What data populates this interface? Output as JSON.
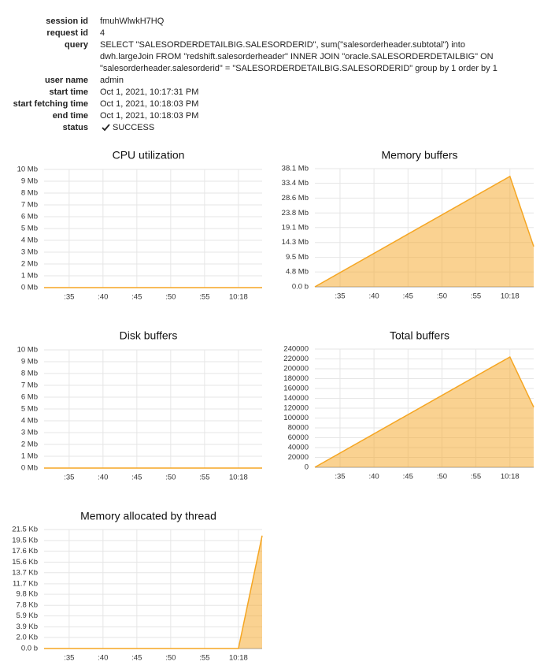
{
  "details": [
    {
      "label": "session id",
      "value": [
        "fmuhWlwkH7HQ"
      ]
    },
    {
      "label": "request id",
      "value": [
        "4"
      ]
    },
    {
      "label": "query",
      "value": [
        "SELECT \"SALESORDERDETAILBIG.SALESORDERID\", sum(\"salesorderheader.subtotal\") into",
        "dwh.largeJoin FROM \"redshift.salesorderheader\" INNER JOIN \"oracle.SALESORDERDETAILBIG\" ON",
        "\"salesorderheader.salesorderid\" = \"SALESORDERDETAILBIG.SALESORDERID\" group by 1 order by 1"
      ]
    },
    {
      "label": "user name",
      "value": [
        "admin"
      ]
    },
    {
      "label": "start time",
      "value": [
        "Oct 1, 2021, 10:17:31 PM"
      ]
    },
    {
      "label": "start fetching time",
      "value": [
        "Oct 1, 2021, 10:18:03 PM"
      ]
    },
    {
      "label": "end time",
      "value": [
        "Oct 1, 2021, 10:18:03 PM"
      ]
    },
    {
      "label": "status",
      "value": [
        "SUCCESS"
      ]
    }
  ],
  "chart_data": [
    {
      "type": "area",
      "title": "CPU utilization",
      "color": "#f5a623",
      "grid": true,
      "x": [
        31.3,
        60,
        63.5
      ],
      "values": [
        0,
        0,
        0
      ],
      "xlim": [
        31.3,
        63.5
      ],
      "xticks": [
        {
          "value": 35,
          "label": ":35"
        },
        {
          "value": 40,
          "label": ":40"
        },
        {
          "value": 45,
          "label": ":45"
        },
        {
          "value": 50,
          "label": ":50"
        },
        {
          "value": 55,
          "label": ":55"
        },
        {
          "value": 60,
          "label": "10:18"
        }
      ],
      "ylim": [
        0,
        10
      ],
      "yticks": [
        {
          "value": 0,
          "label": "0 Mb"
        },
        {
          "value": 1,
          "label": "1 Mb"
        },
        {
          "value": 2,
          "label": "2 Mb"
        },
        {
          "value": 3,
          "label": "3 Mb"
        },
        {
          "value": 4,
          "label": "4 Mb"
        },
        {
          "value": 5,
          "label": "5 Mb"
        },
        {
          "value": 6,
          "label": "6 Mb"
        },
        {
          "value": 7,
          "label": "7 Mb"
        },
        {
          "value": 8,
          "label": "8 Mb"
        },
        {
          "value": 9,
          "label": "9 Mb"
        },
        {
          "value": 10,
          "label": "10 Mb"
        }
      ]
    },
    {
      "type": "area",
      "title": "Memory buffers",
      "color": "#f5a623",
      "grid": true,
      "x": [
        31.3,
        60,
        63.5
      ],
      "values": [
        0,
        35.6,
        13.0
      ],
      "xlim": [
        31.3,
        63.5
      ],
      "xticks": [
        {
          "value": 35,
          "label": ":35"
        },
        {
          "value": 40,
          "label": ":40"
        },
        {
          "value": 45,
          "label": ":45"
        },
        {
          "value": 50,
          "label": ":50"
        },
        {
          "value": 55,
          "label": ":55"
        },
        {
          "value": 60,
          "label": "10:18"
        }
      ],
      "ylim": [
        0,
        38.1
      ],
      "yticks": [
        {
          "value": 0,
          "label": "0.0 b"
        },
        {
          "value": 4.8,
          "label": "4.8 Mb"
        },
        {
          "value": 9.5,
          "label": "9.5 Mb"
        },
        {
          "value": 14.3,
          "label": "14.3 Mb"
        },
        {
          "value": 19.1,
          "label": "19.1 Mb"
        },
        {
          "value": 23.8,
          "label": "23.8 Mb"
        },
        {
          "value": 28.6,
          "label": "28.6 Mb"
        },
        {
          "value": 33.4,
          "label": "33.4 Mb"
        },
        {
          "value": 38.1,
          "label": "38.1 Mb"
        }
      ]
    },
    {
      "type": "area",
      "title": "Disk buffers",
      "color": "#f5a623",
      "grid": true,
      "x": [
        31.3,
        60,
        63.5
      ],
      "values": [
        0,
        0,
        0
      ],
      "xlim": [
        31.3,
        63.5
      ],
      "xticks": [
        {
          "value": 35,
          "label": ":35"
        },
        {
          "value": 40,
          "label": ":40"
        },
        {
          "value": 45,
          "label": ":45"
        },
        {
          "value": 50,
          "label": ":50"
        },
        {
          "value": 55,
          "label": ":55"
        },
        {
          "value": 60,
          "label": "10:18"
        }
      ],
      "ylim": [
        0,
        10
      ],
      "yticks": [
        {
          "value": 0,
          "label": "0 Mb"
        },
        {
          "value": 1,
          "label": "1 Mb"
        },
        {
          "value": 2,
          "label": "2 Mb"
        },
        {
          "value": 3,
          "label": "3 Mb"
        },
        {
          "value": 4,
          "label": "4 Mb"
        },
        {
          "value": 5,
          "label": "5 Mb"
        },
        {
          "value": 6,
          "label": "6 Mb"
        },
        {
          "value": 7,
          "label": "7 Mb"
        },
        {
          "value": 8,
          "label": "8 Mb"
        },
        {
          "value": 9,
          "label": "9 Mb"
        },
        {
          "value": 10,
          "label": "10 Mb"
        }
      ]
    },
    {
      "type": "area",
      "title": "Total buffers",
      "color": "#f5a623",
      "grid": true,
      "x": [
        31.3,
        60,
        63.5
      ],
      "values": [
        0,
        224000,
        122000
      ],
      "xlim": [
        31.3,
        63.5
      ],
      "xticks": [
        {
          "value": 35,
          "label": ":35"
        },
        {
          "value": 40,
          "label": ":40"
        },
        {
          "value": 45,
          "label": ":45"
        },
        {
          "value": 50,
          "label": ":50"
        },
        {
          "value": 55,
          "label": ":55"
        },
        {
          "value": 60,
          "label": "10:18"
        }
      ],
      "ylim": [
        0,
        240000
      ],
      "yticks": [
        0,
        20000,
        40000,
        60000,
        80000,
        100000,
        120000,
        140000,
        160000,
        180000,
        200000,
        220000,
        240000
      ]
    },
    {
      "type": "area",
      "title": "Memory allocated by thread",
      "color": "#f5a623",
      "grid": true,
      "x": [
        31.3,
        60,
        63.5
      ],
      "values": [
        0,
        0,
        20.4
      ],
      "xlim": [
        31.3,
        63.5
      ],
      "xticks": [
        {
          "value": 35,
          "label": ":35"
        },
        {
          "value": 40,
          "label": ":40"
        },
        {
          "value": 45,
          "label": ":45"
        },
        {
          "value": 50,
          "label": ":50"
        },
        {
          "value": 55,
          "label": ":55"
        },
        {
          "value": 60,
          "label": "10:18"
        }
      ],
      "ylim": [
        0,
        21.5
      ],
      "yticks": [
        {
          "value": 0,
          "label": "0.0 b"
        },
        {
          "value": 2.0,
          "label": "2.0 Kb"
        },
        {
          "value": 3.9,
          "label": "3.9 Kb"
        },
        {
          "value": 5.9,
          "label": "5.9 Kb"
        },
        {
          "value": 7.8,
          "label": "7.8 Kb"
        },
        {
          "value": 9.8,
          "label": "9.8 Kb"
        },
        {
          "value": 11.7,
          "label": "11.7 Kb"
        },
        {
          "value": 13.7,
          "label": "13.7 Kb"
        },
        {
          "value": 15.6,
          "label": "15.6 Kb"
        },
        {
          "value": 17.6,
          "label": "17.6 Kb"
        },
        {
          "value": 19.5,
          "label": "19.5 Kb"
        },
        {
          "value": 21.5,
          "label": "21.5 Kb"
        }
      ]
    }
  ]
}
